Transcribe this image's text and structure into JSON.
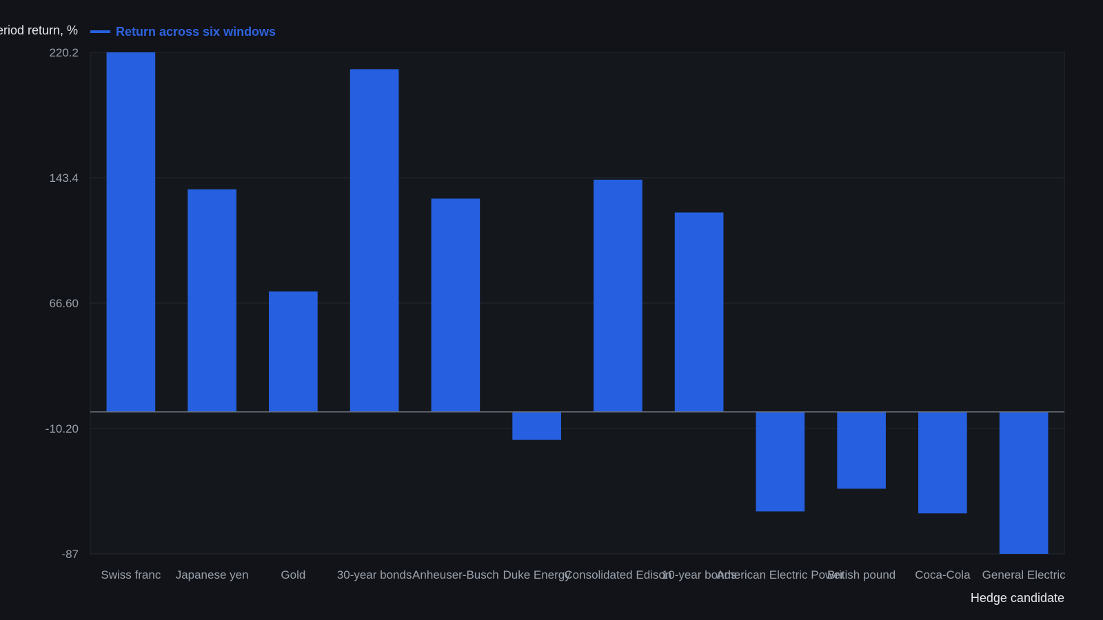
{
  "chart_data": {
    "type": "bar",
    "title": "",
    "ylabel": "Period return, %",
    "xlabel": "Hedge candidate",
    "legend": {
      "placement": "top-left",
      "entries": [
        "Return across six windows"
      ]
    },
    "grid": true,
    "ylim": [
      -87,
      220.2
    ],
    "yticks": [
      220.2,
      143.4,
      66.6,
      -10.2,
      -87
    ],
    "ytick_labels": [
      "220.2",
      "143.4",
      "66.60",
      "-10.20",
      "-87"
    ],
    "categories": [
      "Swiss franc",
      "Japanese yen",
      "Gold",
      "30-year bonds",
      "Anheuser-Busch",
      "Duke Energy",
      "Consolidated Edison",
      "10-year bonds",
      "American Electric Power",
      "British pound",
      "Coca-Cola",
      "General Electric"
    ],
    "series": [
      {
        "name": "Return across six windows",
        "color": "#2660e0",
        "values": [
          220.2,
          136.3,
          73.7,
          209.9,
          130.6,
          -17.2,
          142.2,
          122.1,
          -61.0,
          -47.1,
          -62.2,
          -87.0
        ]
      }
    ]
  }
}
